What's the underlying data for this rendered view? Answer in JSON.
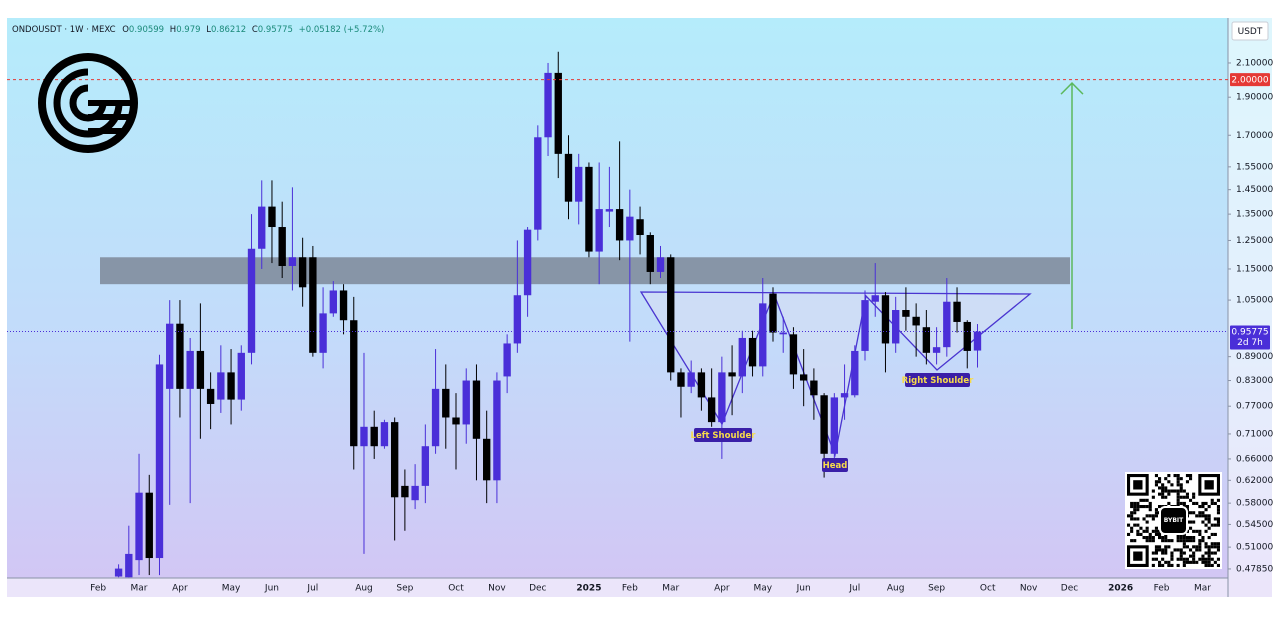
{
  "chart_data": {
    "type": "candlestick",
    "header": {
      "symbol": "ONDOUSDT · 1W · MEXC",
      "open_prefix": "O",
      "high_prefix": "H",
      "low_prefix": "L",
      "close_prefix": "C",
      "change": "+0.05182 (+5.72%)"
    },
    "currency": "USDT",
    "log_scale": true,
    "grid": false,
    "up_color": "#4a2fd8",
    "down_color": "#000000",
    "categories": [
      null,
      null,
      null,
      null,
      null,
      null,
      null,
      null,
      null,
      "Feb",
      null,
      null,
      null,
      "Mar",
      null,
      null,
      null,
      "Apr",
      null,
      null,
      null,
      null,
      "May",
      null,
      null,
      null,
      "Jun",
      null,
      null,
      null,
      "Jul",
      null,
      null,
      null,
      null,
      "Aug",
      null,
      null,
      null,
      "Sep",
      null,
      null,
      null,
      null,
      "Oct",
      null,
      null,
      null,
      "Nov",
      null,
      null,
      null,
      "Dec",
      null,
      null,
      null,
      null,
      "2025",
      null,
      null,
      null,
      "Feb",
      null,
      null,
      null,
      "Mar",
      null,
      null,
      null,
      null,
      "Apr",
      null,
      null,
      null,
      "May",
      null,
      null,
      null,
      "Jun",
      null,
      null,
      null,
      null,
      "Jul",
      null,
      null,
      null,
      "Aug",
      null,
      null,
      null,
      "Sep",
      null,
      null,
      null,
      null,
      "Oct",
      null,
      null,
      null,
      "Nov",
      null,
      null,
      null,
      "Dec",
      null,
      null,
      null,
      null,
      "2026",
      null,
      null,
      null,
      "Feb",
      null,
      null,
      null,
      "Mar",
      null,
      null
    ],
    "open": [
      null,
      null,
      null,
      null,
      null,
      null,
      null,
      null,
      null,
      null,
      null,
      0.468,
      0.467,
      0.491,
      0.598,
      0.494,
      0.81,
      0.98,
      0.81,
      0.905,
      0.81,
      0.785,
      0.85,
      0.785,
      0.9,
      1.22,
      1.38,
      1.3,
      1.16,
      1.19,
      1.19,
      0.9,
      1.01,
      1.08,
      0.99,
      0.685,
      0.725,
      0.685,
      0.735,
      0.61,
      0.585,
      0.61,
      0.685,
      0.81,
      0.745,
      0.73,
      0.83,
      0.7,
      0.62,
      0.84,
      0.925,
      1.065,
      1.29,
      1.69,
      2.04,
      1.61,
      1.4,
      1.55,
      1.21,
      1.36,
      1.37,
      1.25,
      1.33,
      1.27,
      1.14,
      1.19,
      0.85,
      0.815,
      0.85,
      0.79,
      0.735,
      0.85,
      0.84,
      0.94,
      0.865,
      1.07,
      0.95,
      0.95,
      0.845,
      0.83,
      0.795,
      0.67,
      0.79,
      0.795,
      0.905,
      1.045,
      1.065,
      0.925,
      1.02,
      1.0,
      0.97,
      0.9,
      0.915,
      1.045,
      0.985,
      0.90599,
      null,
      null,
      null,
      null,
      null,
      null,
      null,
      null,
      null,
      null,
      null,
      null,
      null,
      null,
      null,
      null,
      null,
      null,
      null,
      null,
      null,
      null,
      null,
      null
    ],
    "high": [
      null,
      null,
      null,
      null,
      null,
      null,
      null,
      null,
      null,
      null,
      null,
      0.485,
      0.543,
      0.67,
      0.63,
      0.895,
      1.05,
      1.05,
      0.94,
      1.04,
      0.85,
      0.92,
      0.91,
      0.92,
      1.35,
      1.49,
      1.49,
      1.4,
      1.46,
      1.26,
      1.23,
      1.09,
      1.11,
      1.1,
      1.06,
      0.9,
      0.76,
      0.74,
      0.745,
      0.64,
      0.65,
      0.73,
      0.91,
      0.87,
      0.8,
      0.86,
      0.87,
      0.76,
      0.85,
      0.95,
      1.25,
      1.3,
      1.75,
      2.1,
      2.17,
      1.7,
      1.61,
      1.57,
      1.57,
      1.55,
      1.67,
      1.45,
      1.38,
      1.28,
      1.23,
      1.2,
      0.86,
      0.88,
      0.86,
      0.86,
      0.89,
      0.92,
      0.96,
      0.96,
      1.12,
      1.09,
      1.0,
      0.97,
      0.91,
      0.86,
      0.8,
      0.8,
      0.87,
      0.92,
      1.08,
      1.17,
      1.075,
      1.06,
      1.09,
      1.04,
      1.02,
      0.97,
      1.12,
      1.09,
      0.99,
      0.979,
      null,
      null,
      null,
      null,
      null,
      null,
      null,
      null,
      null,
      null,
      null,
      null,
      null,
      null,
      null,
      null,
      null,
      null,
      null,
      null,
      null,
      null,
      null,
      null
    ],
    "low": [
      null,
      null,
      null,
      null,
      null,
      null,
      null,
      null,
      null,
      null,
      null,
      0.467,
      0.467,
      0.47,
      0.47,
      0.47,
      0.577,
      0.745,
      0.58,
      0.7,
      0.72,
      0.755,
      0.73,
      0.76,
      0.87,
      1.15,
      1.17,
      1.12,
      1.08,
      1.03,
      0.89,
      0.86,
      1.0,
      0.95,
      0.64,
      0.5,
      0.66,
      0.68,
      0.52,
      0.535,
      0.57,
      0.58,
      0.67,
      0.68,
      0.64,
      0.69,
      0.62,
      0.58,
      0.58,
      0.8,
      0.9,
      1.0,
      1.25,
      1.6,
      1.5,
      1.33,
      1.31,
      1.19,
      1.1,
      1.3,
      1.18,
      0.93,
      1.2,
      1.1,
      1.12,
      0.83,
      0.745,
      0.8,
      0.76,
      0.725,
      0.66,
      0.75,
      0.8,
      0.84,
      0.84,
      0.93,
      0.9,
      0.81,
      0.77,
      0.74,
      0.625,
      0.64,
      0.74,
      0.79,
      0.88,
      1.0,
      0.85,
      0.9,
      0.96,
      0.89,
      0.87,
      0.87,
      0.89,
      0.955,
      0.86,
      0.86212,
      null,
      null,
      null,
      null,
      null,
      null,
      null,
      null,
      null,
      null,
      null,
      null,
      null,
      null,
      null,
      null,
      null,
      null,
      null,
      null,
      null,
      null,
      null,
      null
    ],
    "close": [
      null,
      null,
      null,
      null,
      null,
      null,
      null,
      null,
      null,
      null,
      null,
      0.479,
      0.5,
      0.598,
      0.494,
      0.87,
      0.98,
      0.81,
      0.905,
      0.81,
      0.775,
      0.85,
      0.785,
      0.9,
      1.22,
      1.38,
      1.3,
      1.16,
      1.19,
      1.09,
      0.9,
      1.01,
      1.08,
      0.99,
      0.685,
      0.725,
      0.685,
      0.735,
      0.59,
      0.59,
      0.61,
      0.685,
      0.81,
      0.745,
      0.73,
      0.83,
      0.7,
      0.62,
      0.83,
      0.925,
      1.065,
      1.29,
      1.69,
      2.04,
      1.61,
      1.4,
      1.55,
      1.21,
      1.37,
      1.37,
      1.25,
      1.34,
      1.27,
      1.14,
      1.19,
      0.85,
      0.815,
      0.85,
      0.79,
      0.735,
      0.85,
      0.84,
      0.94,
      0.865,
      1.04,
      0.955,
      0.955,
      0.845,
      0.83,
      0.795,
      0.67,
      0.79,
      0.8,
      0.905,
      1.05,
      1.065,
      0.925,
      1.02,
      1.0,
      0.975,
      0.9,
      0.915,
      1.045,
      0.985,
      0.905,
      0.95775,
      null,
      null,
      null,
      null,
      null,
      null,
      null,
      null,
      null,
      null,
      null,
      null,
      null,
      null,
      null,
      null,
      null,
      null,
      null,
      null,
      null,
      null,
      null,
      null
    ],
    "ylim": [
      0.466,
      2.395
    ],
    "yticks": [
      {
        "value": 2.1,
        "label": "2.10000"
      },
      {
        "value": 1.9,
        "label": "1.90000"
      },
      {
        "value": 1.7,
        "label": "1.70000"
      },
      {
        "value": 1.55,
        "label": "1.55000"
      },
      {
        "value": 1.45,
        "label": "1.45000"
      },
      {
        "value": 1.35,
        "label": "1.35000"
      },
      {
        "value": 1.25,
        "label": "1.25000"
      },
      {
        "value": 1.15,
        "label": "1.15000"
      },
      {
        "value": 1.05,
        "label": "1.05000"
      },
      {
        "value": 0.89,
        "label": "0.89000"
      },
      {
        "value": 0.83,
        "label": "0.83000"
      },
      {
        "value": 0.77,
        "label": "0.77000"
      },
      {
        "value": 0.71,
        "label": "0.71000"
      },
      {
        "value": 0.66,
        "label": "0.66000"
      },
      {
        "value": 0.62,
        "label": "0.62000"
      },
      {
        "value": 0.58,
        "label": "0.58000"
      },
      {
        "value": 0.545,
        "label": "0.54500"
      },
      {
        "value": 0.51,
        "label": "0.51000"
      },
      {
        "value": 0.4785,
        "label": "0.47850"
      }
    ],
    "target": {
      "value": 2.0,
      "label": "2.00000",
      "color": "#e53935"
    },
    "current": {
      "value": 0.95775,
      "label": "0.95775",
      "countdown": "2d 7h",
      "color": "#4a2fd8"
    },
    "zone": [
      1.1,
      1.19
    ],
    "arrow": [
      0.965,
      1.98
    ],
    "arrow_color": "#5cb85c",
    "annotations": [
      "Left Shoulder",
      "Head",
      "Right Shoulder"
    ],
    "badge": "BYBIT"
  }
}
